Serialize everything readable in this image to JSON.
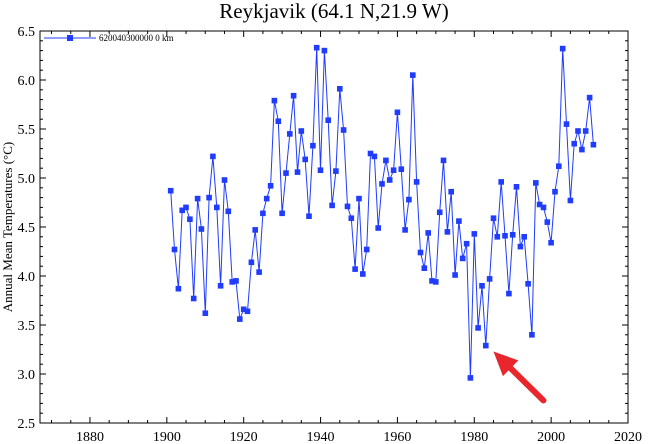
{
  "chart_data": {
    "type": "line",
    "title": "Reykjavik (64.1 N,21.9 W)",
    "xlabel": "",
    "ylabel": "Annual Mean Temperatures (°C)",
    "xlim": [
      1867,
      2020
    ],
    "ylim": [
      2.5,
      6.5
    ],
    "xticks": [
      1880,
      1900,
      1920,
      1940,
      1960,
      1980,
      2000,
      2020
    ],
    "yticks": [
      2.5,
      3.0,
      3.5,
      4.0,
      4.5,
      5.0,
      5.5,
      6.0,
      6.5
    ],
    "ytick_labels": [
      "2.5",
      "3.0",
      "3.5",
      "4.0",
      "4.5",
      "5.0",
      "5.5",
      "6.0",
      "6.5"
    ],
    "grid": false,
    "legend_position": "top-left",
    "series": [
      {
        "name": "620040300000  0 km",
        "color": "#1f3cff",
        "marker": "square",
        "x": [
          1901,
          1902,
          1903,
          1904,
          1905,
          1906,
          1907,
          1908,
          1909,
          1910,
          1911,
          1912,
          1913,
          1914,
          1915,
          1916,
          1917,
          1918,
          1919,
          1920,
          1921,
          1922,
          1923,
          1924,
          1925,
          1926,
          1927,
          1928,
          1929,
          1930,
          1931,
          1932,
          1933,
          1934,
          1935,
          1936,
          1937,
          1938,
          1939,
          1940,
          1941,
          1942,
          1943,
          1944,
          1945,
          1946,
          1947,
          1948,
          1949,
          1950,
          1951,
          1952,
          1953,
          1954,
          1955,
          1956,
          1957,
          1958,
          1959,
          1960,
          1961,
          1962,
          1963,
          1964,
          1965,
          1966,
          1967,
          1968,
          1969,
          1970,
          1971,
          1972,
          1973,
          1974,
          1975,
          1976,
          1977,
          1978,
          1979,
          1980,
          1981,
          1982,
          1983,
          1984,
          1985,
          1986,
          1987,
          1988,
          1989,
          1990,
          1991,
          1992,
          1993,
          1994,
          1995,
          1996,
          1997,
          1998,
          1999,
          2000,
          2001,
          2002,
          2003,
          2004,
          2005,
          2006,
          2007,
          2008,
          2009,
          2010,
          2011
        ],
        "y": [
          4.87,
          4.27,
          3.87,
          4.67,
          4.7,
          4.58,
          3.77,
          4.79,
          4.48,
          3.62,
          4.8,
          5.22,
          4.7,
          3.9,
          4.98,
          4.66,
          3.94,
          3.95,
          3.56,
          3.66,
          3.64,
          4.14,
          4.47,
          4.04,
          4.64,
          4.79,
          4.92,
          5.79,
          5.58,
          4.64,
          5.05,
          5.45,
          5.84,
          5.06,
          5.48,
          5.19,
          4.61,
          5.33,
          6.33,
          5.08,
          6.3,
          5.59,
          4.72,
          5.07,
          5.91,
          5.49,
          4.71,
          4.59,
          4.07,
          4.79,
          4.02,
          4.27,
          5.25,
          5.22,
          4.49,
          4.94,
          5.18,
          4.98,
          5.08,
          5.67,
          5.09,
          4.47,
          4.78,
          6.05,
          4.96,
          4.24,
          4.08,
          4.44,
          3.95,
          3.94,
          4.65,
          5.18,
          4.45,
          4.86,
          4.01,
          4.56,
          4.18,
          4.33,
          2.96,
          4.43,
          3.47,
          3.9,
          3.29,
          3.97,
          4.59,
          4.4,
          4.96,
          4.41,
          3.82,
          4.42,
          4.91,
          4.3,
          4.4,
          3.92,
          3.4,
          4.95,
          4.73,
          4.7,
          4.55,
          4.34,
          4.86,
          5.12,
          6.32,
          5.55,
          4.77,
          5.35,
          5.48,
          5.29,
          5.48,
          5.82,
          5.34
        ]
      }
    ],
    "annotations": [
      {
        "type": "arrow",
        "color": "#e8262b",
        "from": [
          1998,
          2.73
        ],
        "to": [
          1985,
          3.23
        ]
      }
    ]
  }
}
